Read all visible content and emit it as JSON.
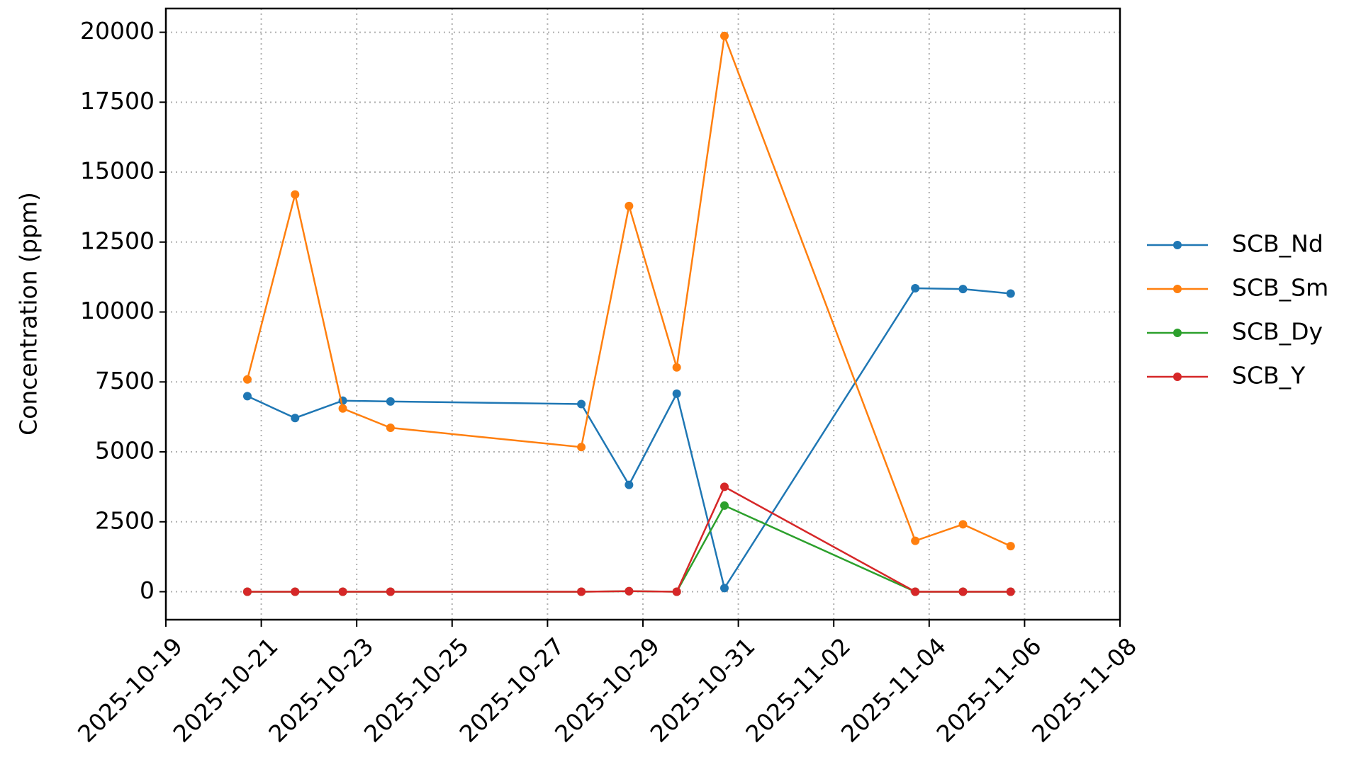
{
  "chart_data": {
    "type": "line",
    "y_label": "Concentration (ppm)",
    "x": [
      "2025-10-20T17:00",
      "2025-10-21T17:00",
      "2025-10-22T17:00",
      "2025-10-23T17:00",
      "2025-10-27T17:00",
      "2025-10-28T17:00",
      "2025-10-29T17:00",
      "2025-10-30T17:00",
      "2025-11-03T17:00",
      "2025-11-04T17:00",
      "2025-11-05T17:00"
    ],
    "series": [
      {
        "name": "SCB_Nd",
        "color": "#1f77b4",
        "values": [
          6990,
          6210,
          6830,
          6800,
          6710,
          3820,
          7080,
          130,
          10850,
          10820,
          10660
        ]
      },
      {
        "name": "SCB_Sm",
        "color": "#ff7f0e",
        "values": [
          7590,
          14200,
          6550,
          5860,
          5170,
          13790,
          8020,
          19870,
          1820,
          2410,
          1630
        ]
      },
      {
        "name": "SCB_Dy",
        "color": "#2ca02c",
        "values": [
          0,
          0,
          0,
          0,
          0,
          20,
          0,
          3080,
          0,
          0,
          0
        ]
      },
      {
        "name": "SCB_Y",
        "color": "#d62728",
        "values": [
          0,
          0,
          0,
          0,
          0,
          20,
          0,
          3750,
          0,
          0,
          0
        ]
      }
    ],
    "xlim": [
      "2025-10-19",
      "2025-11-08"
    ],
    "xticks": [
      "2025-10-19",
      "2025-10-21",
      "2025-10-23",
      "2025-10-25",
      "2025-10-27",
      "2025-10-29",
      "2025-10-31",
      "2025-11-02",
      "2025-11-04",
      "2025-11-06",
      "2025-11-08"
    ],
    "ylim": [
      -1000,
      20850
    ],
    "yticks": [
      0,
      2500,
      5000,
      7500,
      10000,
      12500,
      15000,
      17500,
      20000
    ],
    "grid": true,
    "legend": "right"
  }
}
